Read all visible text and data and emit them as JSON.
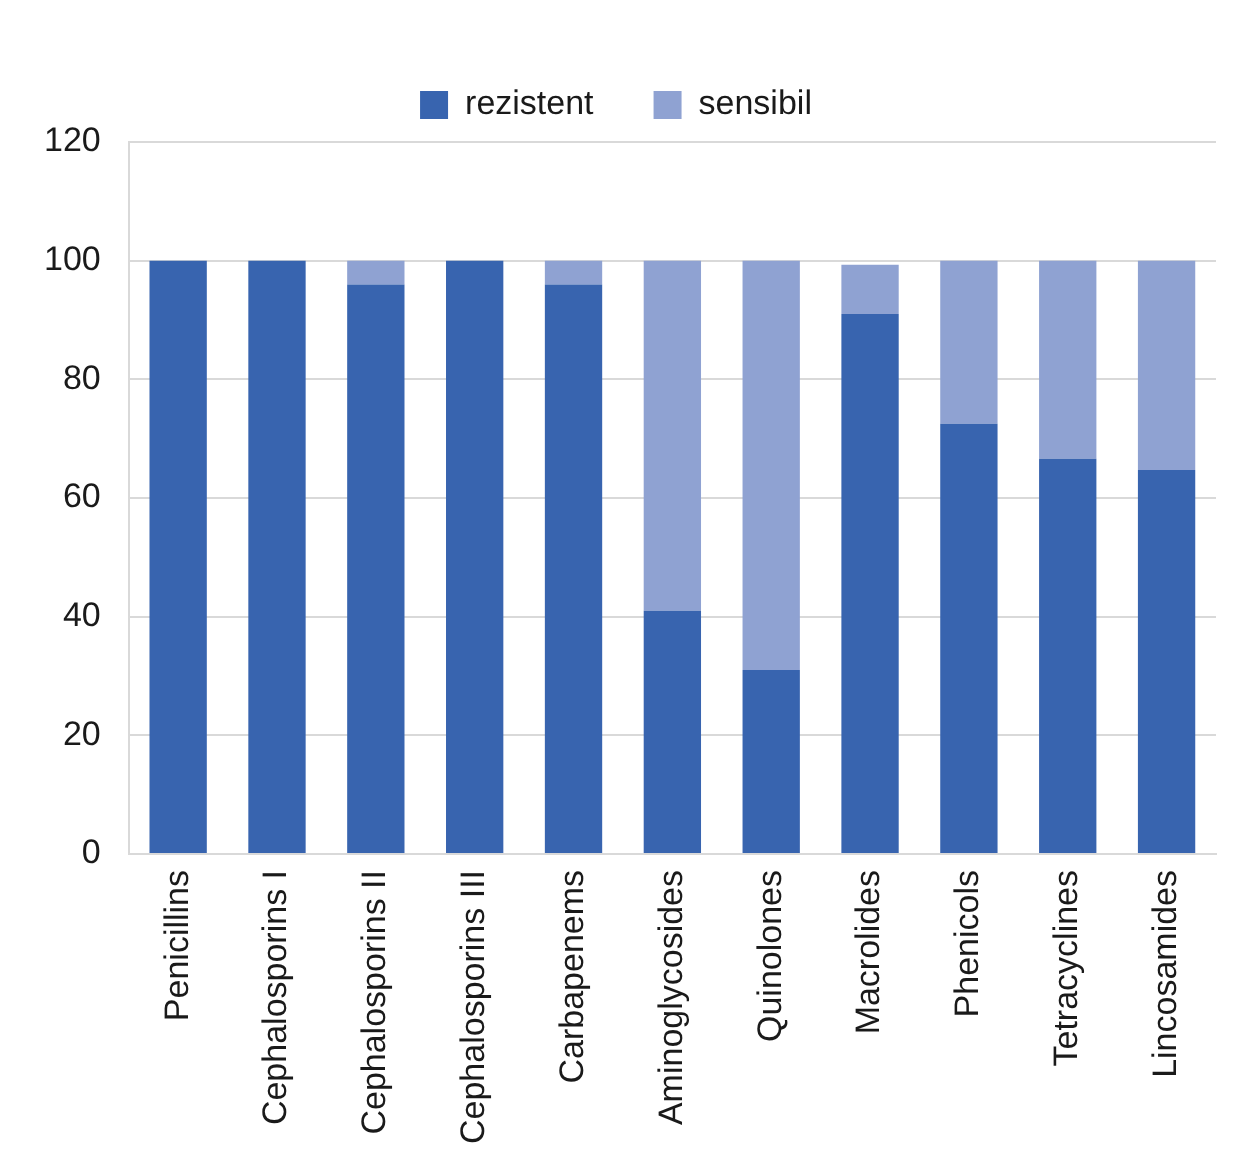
{
  "chart_data": {
    "type": "bar",
    "stacked": true,
    "categories": [
      "Penicillins",
      "Cephalosporins I",
      "Cephalosporins II",
      "Cephalosporins III",
      "Carbapenems",
      "Aminoglycosides",
      "Quinolones",
      "Macrolides",
      "Phenicols",
      "Tetracyclines",
      "Lincosamides"
    ],
    "series": [
      {
        "name": "rezistent",
        "color": "#3864af",
        "values": [
          100,
          100,
          96,
          100,
          96,
          41,
          31,
          91,
          72.5,
          66.6,
          64.7
        ]
      },
      {
        "name": "sensibil",
        "color": "#8fa2d2",
        "values": [
          0,
          0,
          4,
          0,
          4,
          59,
          69,
          8.3,
          27.5,
          33.4,
          35.3
        ]
      }
    ],
    "ylim": [
      0,
      120
    ],
    "yticks": [
      0,
      20,
      40,
      60,
      80,
      100,
      120
    ],
    "grid": "y",
    "legend": "top"
  }
}
